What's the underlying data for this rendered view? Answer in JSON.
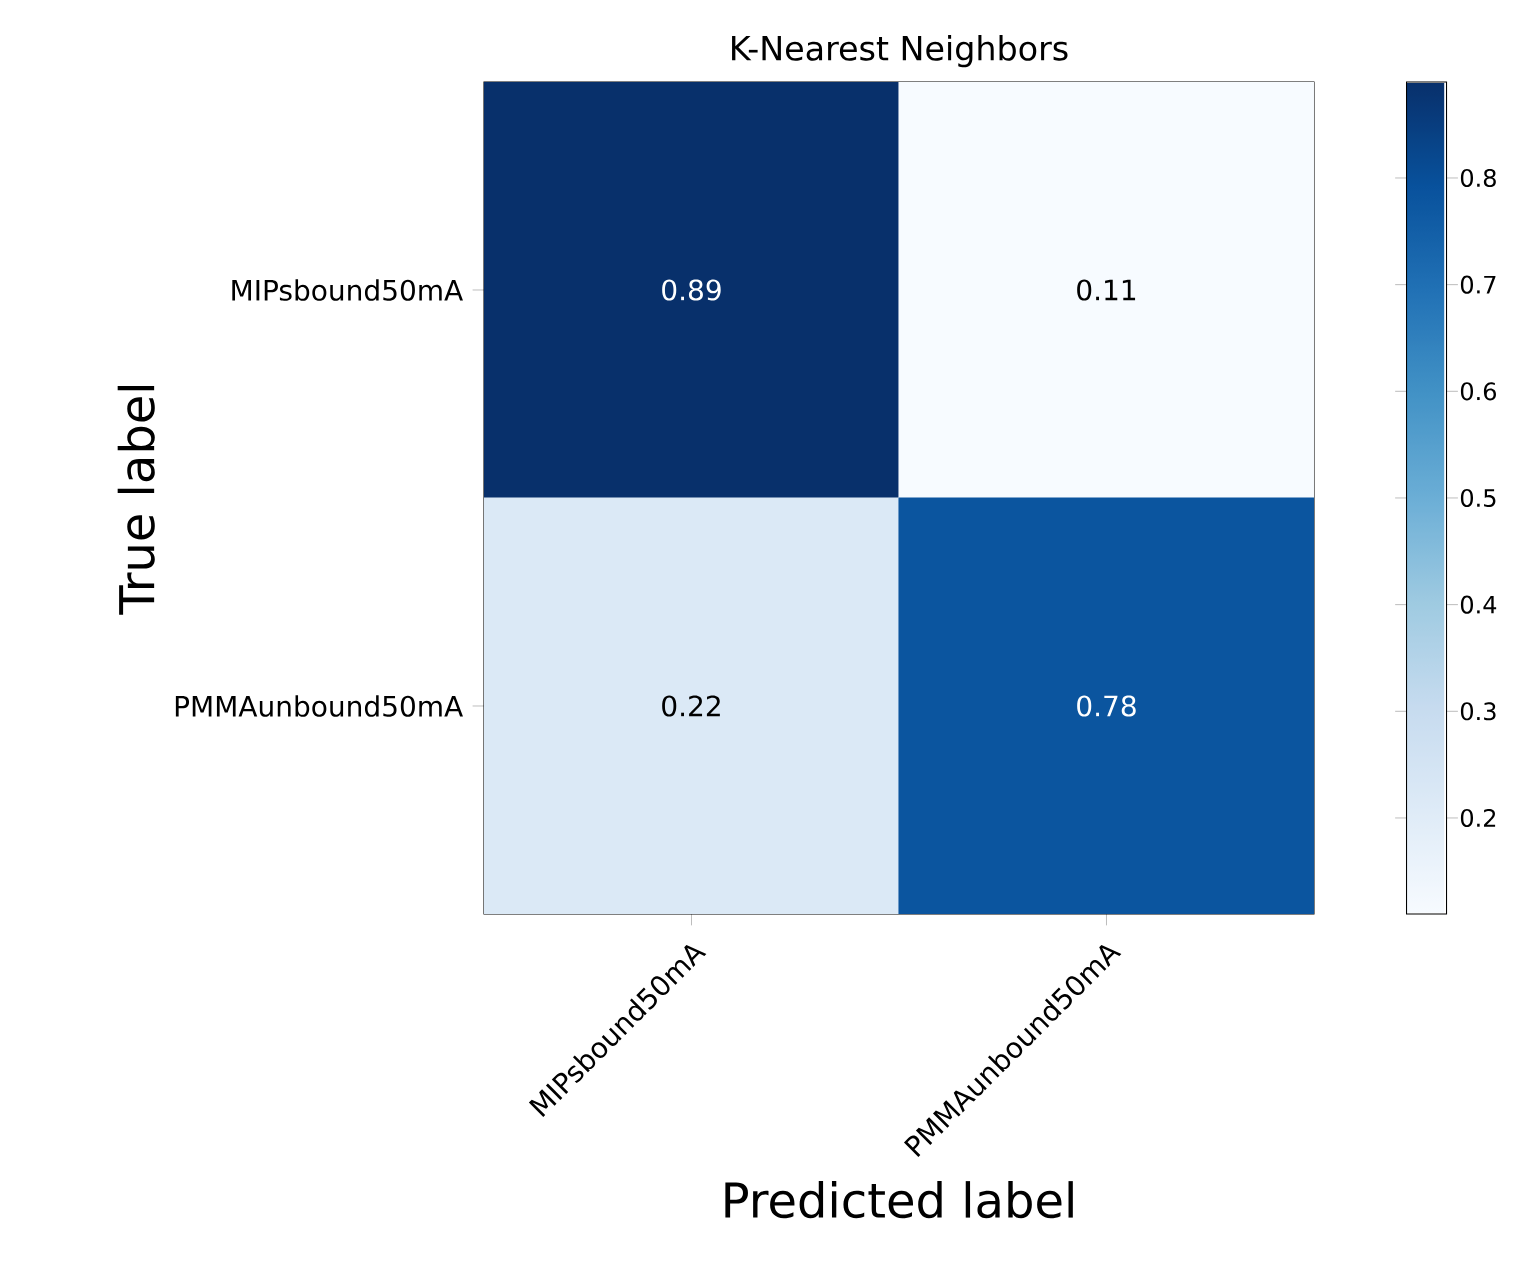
{
  "chart_data": {
    "type": "heatmap",
    "title": "K-Nearest Neighbors",
    "xlabel": "Predicted label",
    "ylabel": "True label",
    "categories": [
      "MIPsbound50mA",
      "PMMAunbound50mA"
    ],
    "y_categories": [
      "MIPsbound50mA",
      "PMMAunbound50mA"
    ],
    "cells": [
      [
        0.89,
        0.11
      ],
      [
        0.22,
        0.78
      ]
    ],
    "clim": [
      0.11,
      0.89
    ],
    "cticks": [
      0.2,
      0.3,
      0.4,
      0.5,
      0.6,
      0.7,
      0.8
    ],
    "data_labels": true
  }
}
